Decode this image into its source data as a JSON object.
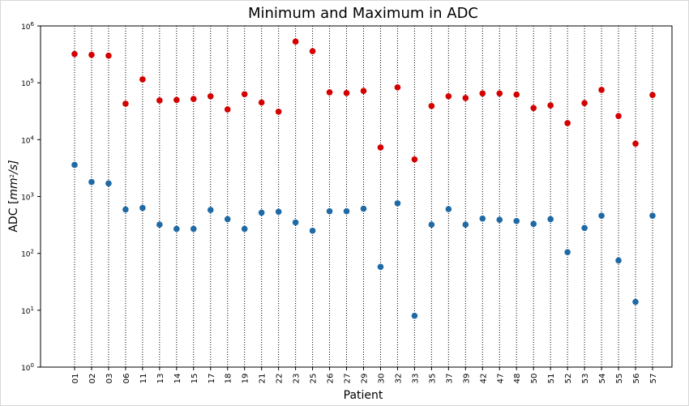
{
  "chart_data": {
    "type": "scatter",
    "title": "Minimum and Maximum in ADC",
    "xlabel": "Patient",
    "ylabel_prefix": "ADC [",
    "ylabel_math": "mm",
    "ylabel_sup": "2",
    "ylabel_suffix": "/s]",
    "yscale": "log",
    "ylim": [
      1,
      1000000
    ],
    "yticks": [
      {
        "base": "10",
        "exp": "0"
      },
      {
        "base": "10",
        "exp": "1"
      },
      {
        "base": "10",
        "exp": "2"
      },
      {
        "base": "10",
        "exp": "3"
      },
      {
        "base": "10",
        "exp": "4"
      },
      {
        "base": "10",
        "exp": "5"
      },
      {
        "base": "10",
        "exp": "6"
      }
    ],
    "categories": [
      "01",
      "02",
      "03",
      "06",
      "11",
      "13",
      "14",
      "15",
      "17",
      "18",
      "19",
      "21",
      "22",
      "23",
      "25",
      "26",
      "27",
      "29",
      "30",
      "32",
      "33",
      "35",
      "37",
      "39",
      "42",
      "47",
      "48",
      "50",
      "51",
      "52",
      "53",
      "54",
      "55",
      "56",
      "57"
    ],
    "series": [
      {
        "color": "#d40000",
        "values": [
          320000,
          310000,
          300000,
          43000,
          115000,
          49000,
          50000,
          52000,
          58000,
          34000,
          63000,
          45000,
          31000,
          530000,
          360000,
          68000,
          66000,
          72000,
          7300,
          83000,
          4500,
          39000,
          58000,
          54000,
          65000,
          65000,
          62000,
          36000,
          40000,
          19500,
          44000,
          75000,
          26000,
          8500,
          61000
        ]
      },
      {
        "color": "#1f6aa5",
        "values": [
          3600,
          1800,
          1700,
          590,
          630,
          320,
          270,
          270,
          580,
          400,
          270,
          520,
          540,
          350,
          250,
          550,
          550,
          610,
          58,
          760,
          8,
          320,
          600,
          320,
          410,
          390,
          370,
          330,
          400,
          105,
          280,
          460,
          75,
          14,
          460
        ]
      }
    ],
    "grid": "vertical dotted lines at each category",
    "legend": "none"
  }
}
